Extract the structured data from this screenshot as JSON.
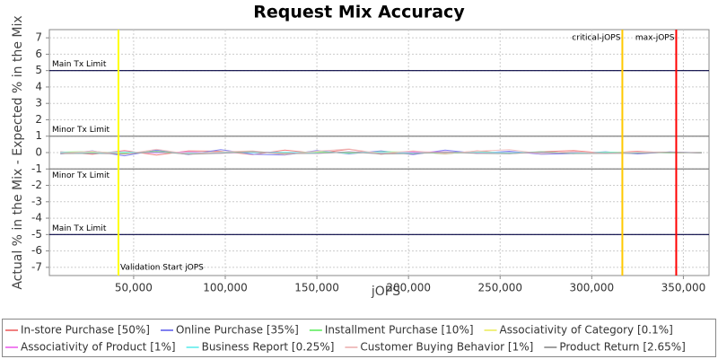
{
  "chart_data": {
    "type": "line",
    "title": "Request Mix Accuracy",
    "x_label": "jOPS",
    "y_label": "Actual % in the Mix - Expected % in the Mix",
    "xlim": [
      4000,
      364000
    ],
    "ylim": [
      -7.5,
      7.5
    ],
    "xticks": [
      {
        "value": 50000,
        "label": "50,000"
      },
      {
        "value": 100000,
        "label": "100,000"
      },
      {
        "value": 150000,
        "label": "150,000"
      },
      {
        "value": 200000,
        "label": "200,000"
      },
      {
        "value": 250000,
        "label": "250,000"
      },
      {
        "value": 300000,
        "label": "300,000"
      },
      {
        "value": 350000,
        "label": "350,000"
      }
    ],
    "yticks": [
      -7,
      -6,
      -5,
      -4,
      -3,
      -2,
      -1,
      0,
      1,
      2,
      3,
      4,
      5,
      6,
      7
    ],
    "grid": true,
    "x": [
      10000,
      27500,
      45000,
      62500,
      80000,
      97500,
      115000,
      132500,
      150000,
      167500,
      185000,
      202500,
      220000,
      237500,
      255000,
      272500,
      290000,
      307500,
      325000,
      342500,
      360000
    ],
    "series": [
      {
        "name": "In-store Purchase [50%]",
        "color": "#f08080",
        "values": [
          0.05,
          -0.1,
          0.12,
          -0.15,
          0.1,
          0.08,
          -0.12,
          0.15,
          -0.05,
          0.2,
          -0.1,
          0.06,
          -0.08,
          0.1,
          -0.06,
          0.05,
          0.12,
          -0.04,
          0.08,
          -0.03,
          0.02
        ]
      },
      {
        "name": "Online Purchase [35%]",
        "color": "#8080f0",
        "values": [
          -0.08,
          0.1,
          -0.2,
          0.15,
          -0.12,
          0.18,
          -0.1,
          -0.15,
          0.12,
          -0.08,
          0.1,
          -0.12,
          0.15,
          -0.05,
          0.08,
          -0.1,
          -0.06,
          0.05,
          -0.08,
          0.04,
          -0.02
        ]
      },
      {
        "name": "Installment Purchase [10%]",
        "color": "#80f080",
        "values": [
          0.03,
          0.06,
          -0.05,
          0.08,
          -0.06,
          0.04,
          0.07,
          -0.05,
          0.06,
          -0.04,
          0.05,
          0.03,
          -0.06,
          0.04,
          -0.03,
          0.05,
          -0.04,
          0.03,
          0.02,
          -0.02,
          0.01
        ]
      },
      {
        "name": "Associativity of Category [0.1%]",
        "color": "#f0f080",
        "values": [
          0,
          0.01,
          0,
          -0.01,
          0,
          0.01,
          0,
          0,
          -0.01,
          0,
          0.01,
          0,
          0,
          0.01,
          0,
          -0.01,
          0,
          0,
          0.01,
          0,
          0
        ]
      },
      {
        "name": "Associativity of Product [1%]",
        "color": "#f080f0",
        "values": [
          0.02,
          -0.05,
          0.04,
          -0.03,
          0.05,
          -0.04,
          0.03,
          0.02,
          -0.05,
          0.04,
          -0.02,
          0.03,
          0.05,
          -0.03,
          0.02,
          -0.04,
          0.03,
          -0.02,
          0.02,
          0.01,
          0
        ]
      },
      {
        "name": "Business Report [0.25%]",
        "color": "#80f0f0",
        "values": [
          0.01,
          -0.02,
          0.03,
          0.02,
          -0.03,
          0.02,
          -0.01,
          0.03,
          -0.02,
          0.01,
          0.02,
          -0.03,
          0.01,
          0.02,
          -0.01,
          0.02,
          -0.02,
          0.01,
          0,
          0.01,
          0
        ]
      },
      {
        "name": "Customer Buying Behavior [1%]",
        "color": "#f0c0c0",
        "values": [
          -0.05,
          0.08,
          -0.1,
          0.2,
          -0.08,
          0.05,
          0.1,
          -0.12,
          0.08,
          0.22,
          -0.06,
          0.1,
          -0.05,
          0.08,
          0.18,
          -0.07,
          0.06,
          -0.05,
          0.04,
          0.03,
          -0.02
        ]
      },
      {
        "name": "Product Return [2.65%]",
        "color": "#a0a0a0",
        "values": [
          -0.06,
          -0.05,
          -0.08,
          0.06,
          -0.1,
          -0.04,
          0.05,
          -0.06,
          -0.05,
          0.04,
          -0.08,
          -0.06,
          0.03,
          -0.05,
          -0.07,
          0.04,
          -0.06,
          -0.05,
          -0.04,
          0.02,
          -0.03
        ]
      }
    ],
    "h_lines": [
      {
        "value": 5,
        "label": "Main Tx Limit",
        "color": "#000040",
        "label_side": "above"
      },
      {
        "value": 1,
        "label": "Minor Tx Limit",
        "color": "#808080",
        "label_side": "above"
      },
      {
        "value": -1,
        "label": "Minor Tx Limit",
        "color": "#808080",
        "label_side": "below"
      },
      {
        "value": -5,
        "label": "Main Tx Limit",
        "color": "#000040",
        "label_side": "above"
      }
    ],
    "v_lines": [
      {
        "value": 41700,
        "label": "Validation Start jOPS",
        "color": "#ffff00",
        "label_side": "bottom-right"
      },
      {
        "value": 316700,
        "label": "critical-jOPS",
        "color": "#ffc800",
        "label_side": "top-left"
      },
      {
        "value": 346100,
        "label": "max-jOPS",
        "color": "#ff0000",
        "label_side": "top-left"
      }
    ]
  }
}
